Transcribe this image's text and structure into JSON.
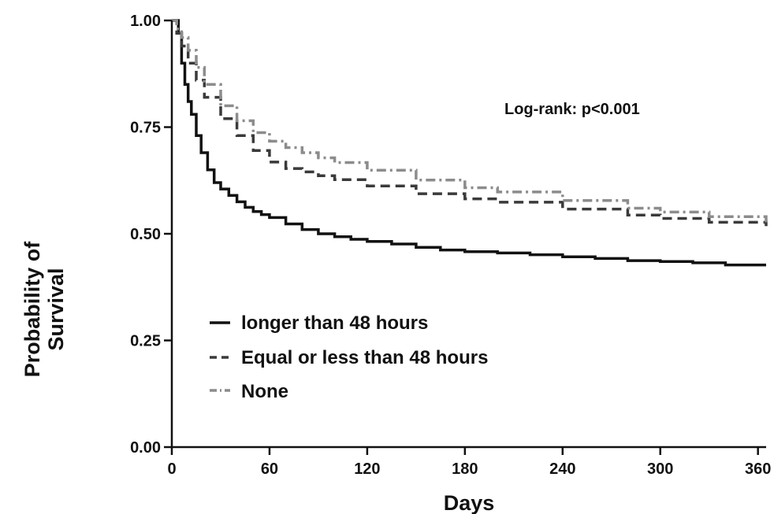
{
  "chart_data": {
    "type": "line",
    "title": "",
    "xlabel": "Days",
    "ylabel_lines": [
      "Probability of",
      "Survival"
    ],
    "xlim": [
      0,
      365
    ],
    "ylim": [
      0,
      1
    ],
    "x_ticks": [
      0,
      60,
      120,
      180,
      240,
      300,
      360
    ],
    "x_tick_labels": [
      "0",
      "60",
      "120",
      "180",
      "240",
      "300",
      "360"
    ],
    "y_ticks": [
      0,
      0.25,
      0.5,
      0.75,
      1.0
    ],
    "y_tick_labels": [
      "0.00",
      "0.25",
      "0.50",
      "0.75",
      "1.00"
    ],
    "grid": false,
    "legend_position": "left-lower",
    "annotation": "Log-rank: p<0.001",
    "series": [
      {
        "name": "longer than 48 hours",
        "color": "#111111",
        "dash": "solid",
        "x": [
          0,
          2,
          4,
          6,
          8,
          10,
          12,
          15,
          18,
          22,
          26,
          30,
          35,
          40,
          45,
          50,
          55,
          60,
          70,
          80,
          90,
          100,
          110,
          120,
          135,
          150,
          165,
          180,
          200,
          220,
          240,
          260,
          280,
          300,
          320,
          340,
          365
        ],
        "y": [
          1.0,
          1.0,
          0.97,
          0.9,
          0.85,
          0.81,
          0.78,
          0.73,
          0.69,
          0.65,
          0.62,
          0.605,
          0.59,
          0.575,
          0.562,
          0.552,
          0.545,
          0.538,
          0.523,
          0.51,
          0.5,
          0.493,
          0.487,
          0.482,
          0.476,
          0.468,
          0.462,
          0.458,
          0.455,
          0.451,
          0.446,
          0.442,
          0.437,
          0.435,
          0.432,
          0.427,
          0.427
        ]
      },
      {
        "name": "Equal or less than 48 hours",
        "color": "#3a3a3a",
        "dash": "dashed",
        "x": [
          0,
          3,
          6,
          10,
          15,
          20,
          30,
          40,
          50,
          60,
          70,
          80,
          90,
          100,
          120,
          150,
          180,
          200,
          240,
          280,
          300,
          330,
          365
        ],
        "y": [
          1.0,
          0.97,
          0.94,
          0.9,
          0.86,
          0.82,
          0.77,
          0.73,
          0.695,
          0.668,
          0.653,
          0.645,
          0.636,
          0.627,
          0.612,
          0.594,
          0.582,
          0.574,
          0.558,
          0.544,
          0.536,
          0.527,
          0.518
        ]
      },
      {
        "name": "None",
        "color": "#8c8c8c",
        "dash": "dashdot",
        "x": [
          0,
          3,
          6,
          10,
          15,
          20,
          30,
          40,
          50,
          60,
          70,
          80,
          90,
          100,
          120,
          150,
          180,
          200,
          240,
          280,
          300,
          330,
          365
        ],
        "y": [
          1.0,
          0.98,
          0.96,
          0.93,
          0.89,
          0.85,
          0.8,
          0.765,
          0.737,
          0.717,
          0.702,
          0.69,
          0.678,
          0.667,
          0.649,
          0.626,
          0.608,
          0.598,
          0.578,
          0.56,
          0.551,
          0.54,
          0.527
        ]
      }
    ]
  }
}
